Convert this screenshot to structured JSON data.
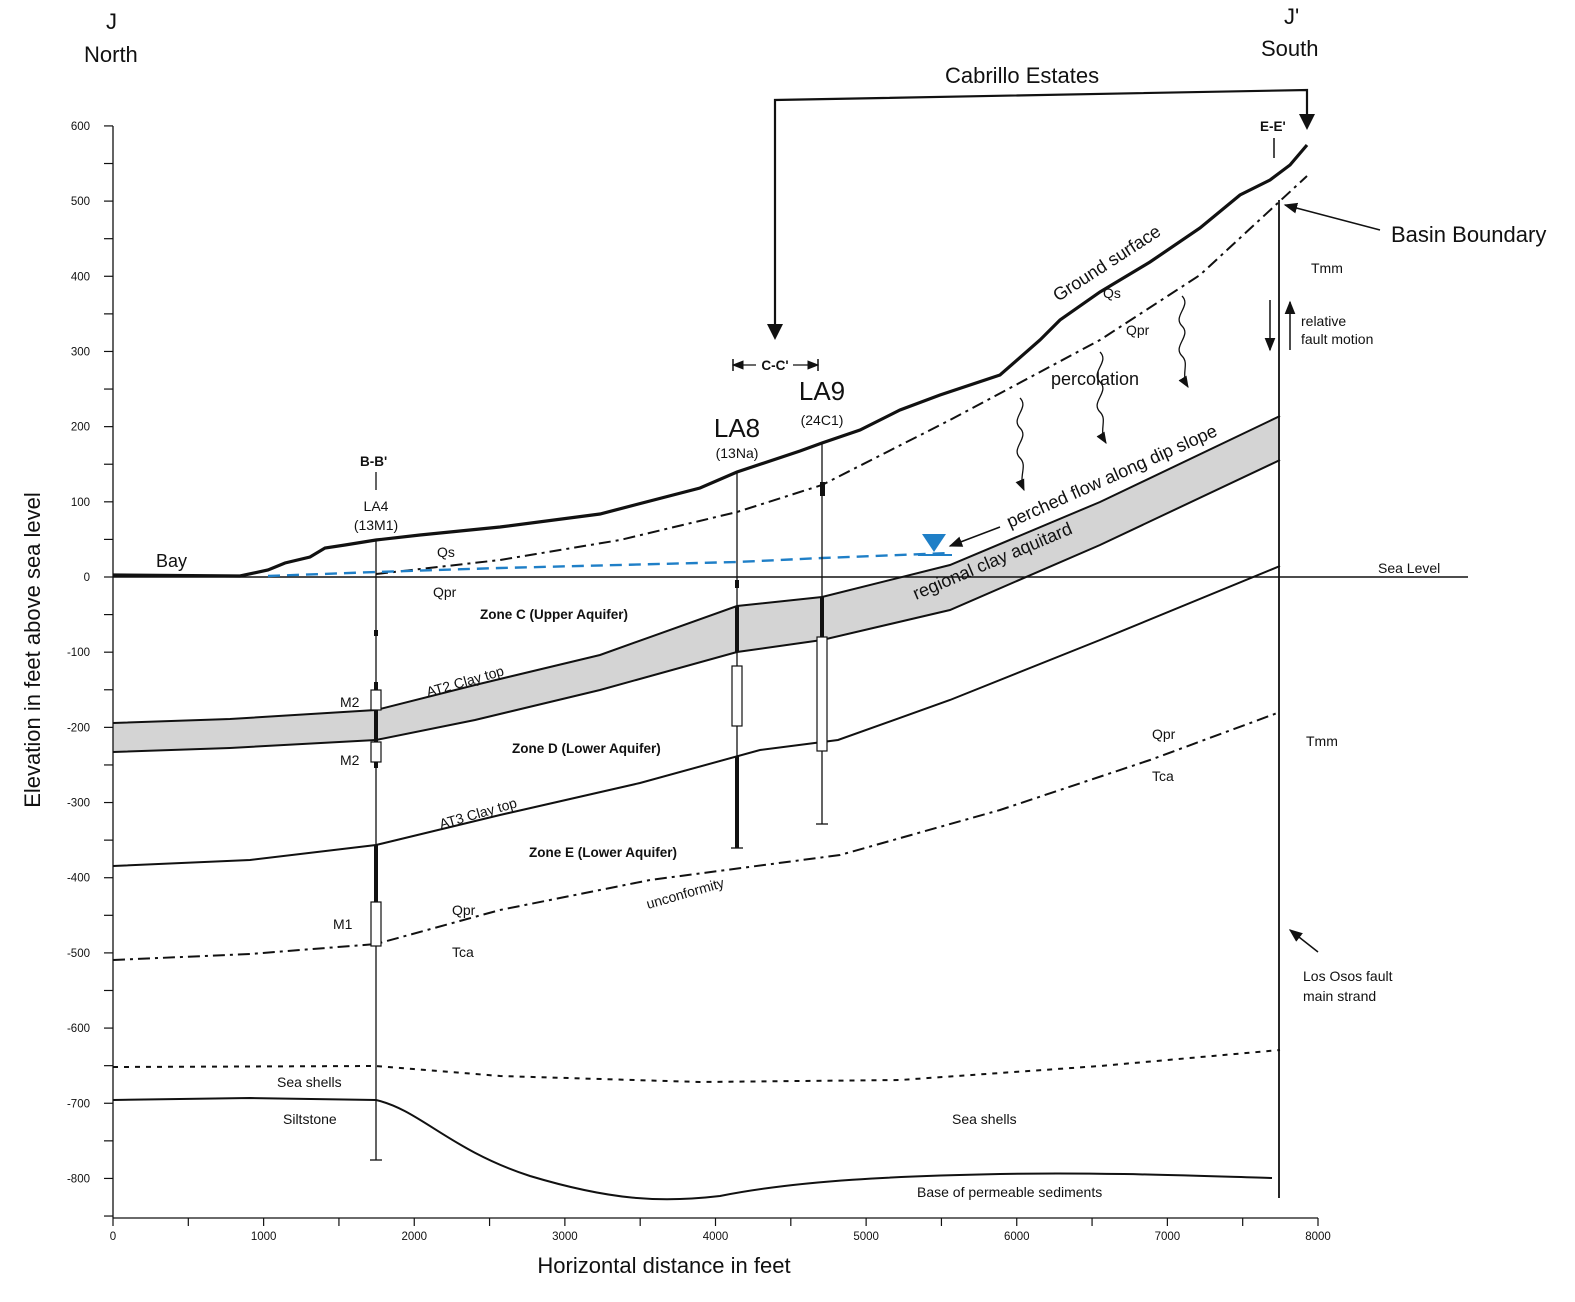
{
  "header": {
    "left_letter": "J",
    "left_dir": "North",
    "right_letter": "J'",
    "right_dir": "South",
    "cabrillo": "Cabrillo Estates"
  },
  "axes": {
    "ylabel": "Elevation in feet above sea level",
    "xlabel": "Horizontal distance in feet",
    "y_ticks": [
      "600",
      "500",
      "400",
      "300",
      "200",
      "100",
      "0",
      "-100",
      "-200",
      "-300",
      "-400",
      "-500",
      "-600",
      "-700",
      "-800"
    ],
    "x_ticks": [
      "0",
      "1000",
      "2000",
      "3000",
      "4000",
      "5000",
      "6000",
      "7000",
      "8000"
    ],
    "xlim": [
      0,
      8000
    ],
    "ylim": [
      -850,
      600
    ]
  },
  "sections": {
    "bb": "B-B'",
    "cc": "C-C'",
    "ee": "E-E'"
  },
  "wells": {
    "la4": "LA4",
    "la4_id": "(13M1)",
    "la8": "LA8",
    "la8_id": "(13Na)",
    "la9": "LA9",
    "la9_id": "(24C1)",
    "m2_upper": "M2",
    "m2_lower": "M2",
    "m1": "M1"
  },
  "labels": {
    "bay": "Bay",
    "ground_surface": "Ground surface",
    "basin_boundary": "Basin Boundary",
    "tmm_upper": "Tmm",
    "tmm_lower": "Tmm",
    "relative1": "relative",
    "relative2": "fault motion",
    "qs_upper": "Qs",
    "qpr_upper": "Qpr",
    "percolation": "percolation",
    "perched_flow": "perched flow along dip slope",
    "regional_clay": "regional clay aquitard",
    "qs_left": "Qs",
    "qpr_left": "Qpr",
    "sea_level": "Sea Level",
    "zone_c": "Zone C (Upper Aquifer)",
    "at2": "AT2 Clay top",
    "zone_d": "Zone D (Lower Aquifer)",
    "at3": "AT3 Clay top",
    "zone_e": "Zone E (Lower Aquifer)",
    "qpr_right": "Qpr",
    "tca_right": "Tca",
    "qpr_mid": "Qpr",
    "tca_mid": "Tca",
    "unconformity": "unconformity",
    "los_osos1": "Los Osos fault",
    "los_osos2": "main strand",
    "sea_shells_left": "Sea shells",
    "siltstone": "Siltstone",
    "sea_shells_right": "Sea shells",
    "base_permeable": "Base of permeable sediments"
  },
  "colors": {
    "line": "#111111",
    "clay_fill": "#d4d4d4",
    "water_table": "#1f7fc7"
  }
}
